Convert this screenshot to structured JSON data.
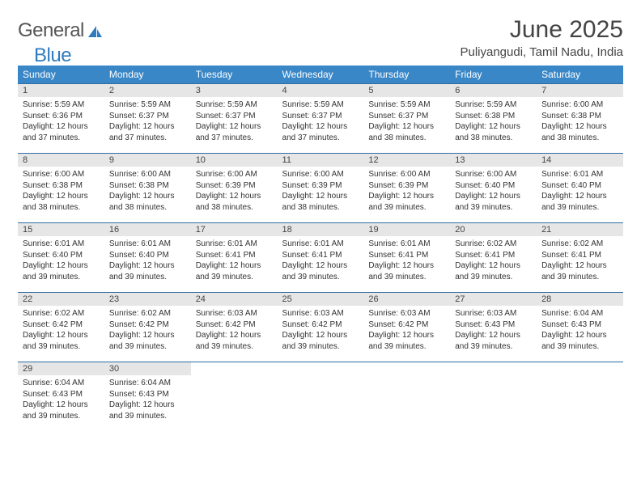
{
  "logo": {
    "general": "General",
    "blue": "Blue"
  },
  "title": "June 2025",
  "location": "Puliyangudi, Tamil Nadu, India",
  "colors": {
    "header_bg": "#3a87c7",
    "header_text": "#ffffff",
    "row_border": "#2f6ca3",
    "daynum_bg": "#e6e6e6",
    "logo_blue": "#2f7bbf"
  },
  "fonts": {
    "title_size": 30,
    "location_size": 15,
    "weekday_size": 12,
    "daynum_size": 11,
    "body_size": 10
  },
  "weekdays": [
    "Sunday",
    "Monday",
    "Tuesday",
    "Wednesday",
    "Thursday",
    "Friday",
    "Saturday"
  ],
  "days": [
    {
      "n": 1,
      "sr": "5:59 AM",
      "ss": "6:36 PM",
      "dl": "12 hours and 37 minutes."
    },
    {
      "n": 2,
      "sr": "5:59 AM",
      "ss": "6:37 PM",
      "dl": "12 hours and 37 minutes."
    },
    {
      "n": 3,
      "sr": "5:59 AM",
      "ss": "6:37 PM",
      "dl": "12 hours and 37 minutes."
    },
    {
      "n": 4,
      "sr": "5:59 AM",
      "ss": "6:37 PM",
      "dl": "12 hours and 37 minutes."
    },
    {
      "n": 5,
      "sr": "5:59 AM",
      "ss": "6:37 PM",
      "dl": "12 hours and 38 minutes."
    },
    {
      "n": 6,
      "sr": "5:59 AM",
      "ss": "6:38 PM",
      "dl": "12 hours and 38 minutes."
    },
    {
      "n": 7,
      "sr": "6:00 AM",
      "ss": "6:38 PM",
      "dl": "12 hours and 38 minutes."
    },
    {
      "n": 8,
      "sr": "6:00 AM",
      "ss": "6:38 PM",
      "dl": "12 hours and 38 minutes."
    },
    {
      "n": 9,
      "sr": "6:00 AM",
      "ss": "6:38 PM",
      "dl": "12 hours and 38 minutes."
    },
    {
      "n": 10,
      "sr": "6:00 AM",
      "ss": "6:39 PM",
      "dl": "12 hours and 38 minutes."
    },
    {
      "n": 11,
      "sr": "6:00 AM",
      "ss": "6:39 PM",
      "dl": "12 hours and 38 minutes."
    },
    {
      "n": 12,
      "sr": "6:00 AM",
      "ss": "6:39 PM",
      "dl": "12 hours and 39 minutes."
    },
    {
      "n": 13,
      "sr": "6:00 AM",
      "ss": "6:40 PM",
      "dl": "12 hours and 39 minutes."
    },
    {
      "n": 14,
      "sr": "6:01 AM",
      "ss": "6:40 PM",
      "dl": "12 hours and 39 minutes."
    },
    {
      "n": 15,
      "sr": "6:01 AM",
      "ss": "6:40 PM",
      "dl": "12 hours and 39 minutes."
    },
    {
      "n": 16,
      "sr": "6:01 AM",
      "ss": "6:40 PM",
      "dl": "12 hours and 39 minutes."
    },
    {
      "n": 17,
      "sr": "6:01 AM",
      "ss": "6:41 PM",
      "dl": "12 hours and 39 minutes."
    },
    {
      "n": 18,
      "sr": "6:01 AM",
      "ss": "6:41 PM",
      "dl": "12 hours and 39 minutes."
    },
    {
      "n": 19,
      "sr": "6:01 AM",
      "ss": "6:41 PM",
      "dl": "12 hours and 39 minutes."
    },
    {
      "n": 20,
      "sr": "6:02 AM",
      "ss": "6:41 PM",
      "dl": "12 hours and 39 minutes."
    },
    {
      "n": 21,
      "sr": "6:02 AM",
      "ss": "6:41 PM",
      "dl": "12 hours and 39 minutes."
    },
    {
      "n": 22,
      "sr": "6:02 AM",
      "ss": "6:42 PM",
      "dl": "12 hours and 39 minutes."
    },
    {
      "n": 23,
      "sr": "6:02 AM",
      "ss": "6:42 PM",
      "dl": "12 hours and 39 minutes."
    },
    {
      "n": 24,
      "sr": "6:03 AM",
      "ss": "6:42 PM",
      "dl": "12 hours and 39 minutes."
    },
    {
      "n": 25,
      "sr": "6:03 AM",
      "ss": "6:42 PM",
      "dl": "12 hours and 39 minutes."
    },
    {
      "n": 26,
      "sr": "6:03 AM",
      "ss": "6:42 PM",
      "dl": "12 hours and 39 minutes."
    },
    {
      "n": 27,
      "sr": "6:03 AM",
      "ss": "6:43 PM",
      "dl": "12 hours and 39 minutes."
    },
    {
      "n": 28,
      "sr": "6:04 AM",
      "ss": "6:43 PM",
      "dl": "12 hours and 39 minutes."
    },
    {
      "n": 29,
      "sr": "6:04 AM",
      "ss": "6:43 PM",
      "dl": "12 hours and 39 minutes."
    },
    {
      "n": 30,
      "sr": "6:04 AM",
      "ss": "6:43 PM",
      "dl": "12 hours and 39 minutes."
    }
  ],
  "labels": {
    "sunrise": "Sunrise:",
    "sunset": "Sunset:",
    "daylight": "Daylight:"
  }
}
